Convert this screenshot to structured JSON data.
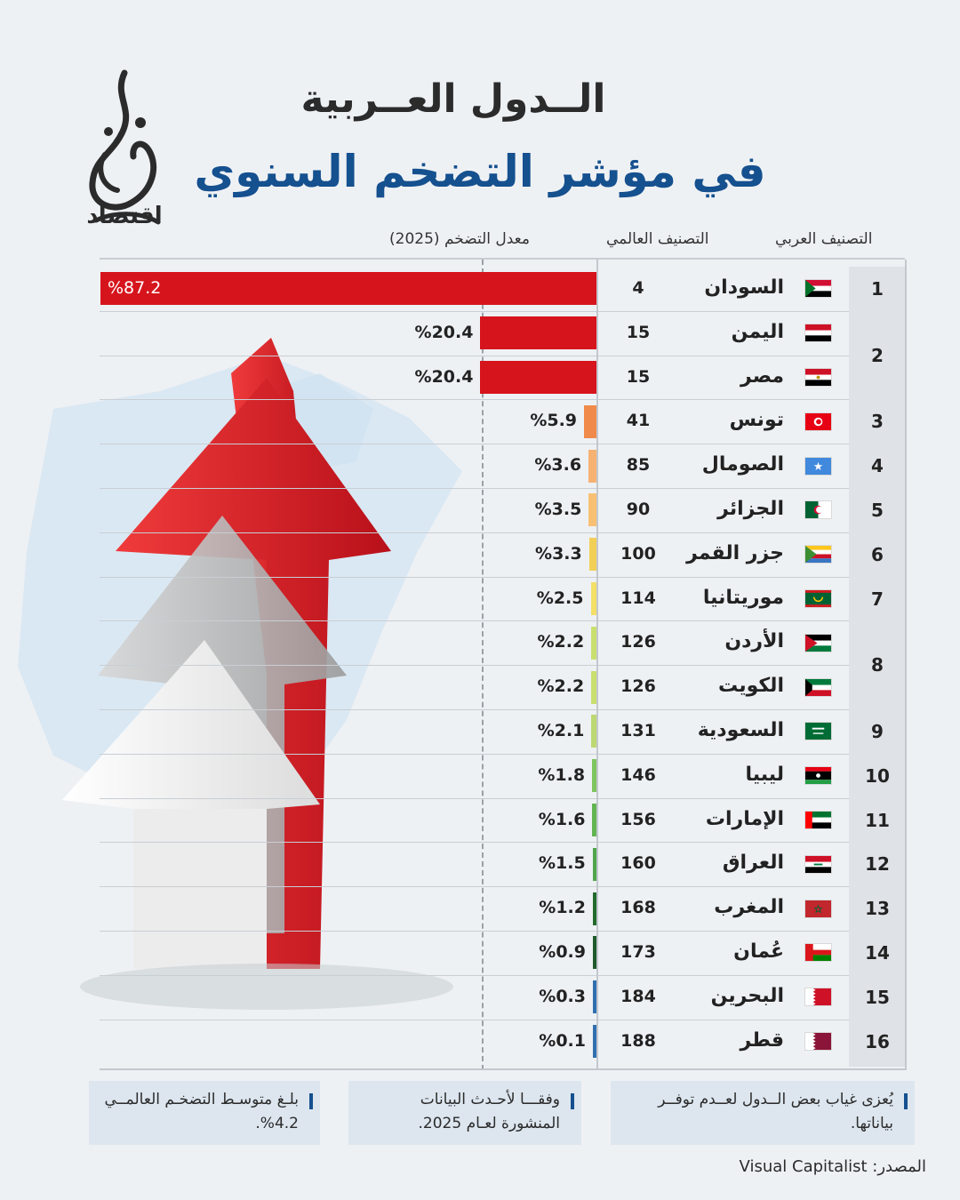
{
  "header": {
    "title_line1": "الــدول العــربية",
    "title_line2": "في مؤشر التضخم السنوي"
  },
  "logo": {
    "name": "الجزيرة",
    "sub_label": "اقتصاد"
  },
  "columns": {
    "arab_rank": "التصنيف العربي",
    "world_rank": "التصنيف العالمي",
    "rate": "معدل التضخم (2025)"
  },
  "chart_data": {
    "type": "bar",
    "orientation": "horizontal",
    "xlim": [
      0,
      87.2
    ],
    "grid": false,
    "rows": [
      {
        "arab_rank": "1",
        "country": "السودان",
        "world_rank": "4",
        "value": 87.2,
        "label": "%87.2",
        "color": "#d6141c"
      },
      {
        "arab_rank": "2",
        "country": "اليمن",
        "world_rank": "15",
        "value": 20.4,
        "label": "%20.4",
        "color": "#d6141c"
      },
      {
        "arab_rank": "",
        "country": "مصر",
        "world_rank": "15",
        "value": 20.4,
        "label": "%20.4",
        "color": "#d6141c"
      },
      {
        "arab_rank": "3",
        "country": "تونس",
        "world_rank": "41",
        "value": 5.9,
        "label": "%5.9",
        "color": "#f08a4b"
      },
      {
        "arab_rank": "4",
        "country": "الصومال",
        "world_rank": "85",
        "value": 3.6,
        "label": "%3.6",
        "color": "#f7b273"
      },
      {
        "arab_rank": "5",
        "country": "الجزائر",
        "world_rank": "90",
        "value": 3.5,
        "label": "%3.5",
        "color": "#f9c074"
      },
      {
        "arab_rank": "6",
        "country": "جزر القمر",
        "world_rank": "100",
        "value": 3.3,
        "label": "%3.3",
        "color": "#f2cf57"
      },
      {
        "arab_rank": "7",
        "country": "موريتانيا",
        "world_rank": "114",
        "value": 2.5,
        "label": "%2.5",
        "color": "#f4df67"
      },
      {
        "arab_rank": "8",
        "country": "الأردن",
        "world_rank": "126",
        "value": 2.2,
        "label": "%2.2",
        "color": "#c9df6f"
      },
      {
        "arab_rank": "",
        "country": "الكويت",
        "world_rank": "126",
        "value": 2.2,
        "label": "%2.2",
        "color": "#c9df6f"
      },
      {
        "arab_rank": "9",
        "country": "السعودية",
        "world_rank": "131",
        "value": 2.1,
        "label": "%2.1",
        "color": "#bcd872"
      },
      {
        "arab_rank": "10",
        "country": "ليبيا",
        "world_rank": "146",
        "value": 1.8,
        "label": "%1.8",
        "color": "#7fc55f"
      },
      {
        "arab_rank": "11",
        "country": "الإمارات",
        "world_rank": "156",
        "value": 1.6,
        "label": "%1.6",
        "color": "#62b552"
      },
      {
        "arab_rank": "12",
        "country": "العراق",
        "world_rank": "160",
        "value": 1.5,
        "label": "%1.5",
        "color": "#4fa64a"
      },
      {
        "arab_rank": "13",
        "country": "المغرب",
        "world_rank": "168",
        "value": 1.2,
        "label": "%1.2",
        "color": "#22692c"
      },
      {
        "arab_rank": "14",
        "country": "عُمان",
        "world_rank": "173",
        "value": 0.9,
        "label": "%0.9",
        "color": "#1e5a2a"
      },
      {
        "arab_rank": "15",
        "country": "البحرين",
        "world_rank": "184",
        "value": 0.3,
        "label": "%0.3",
        "color": "#2f6fb0"
      },
      {
        "arab_rank": "16",
        "country": "قطر",
        "world_rank": "188",
        "value": 0.1,
        "label": "%0.1",
        "color": "#2f6fb0"
      }
    ]
  },
  "notes": [
    "بلـغ متوسـط التضخـم العالمــي 4.2%.",
    "وفقـــا لأحـدث البيانات المنشورة لعـام 2025.",
    "يُعزى غياب بعض الــدول لعــدم توفــر بياناتها."
  ],
  "source": "المصدر: Visual Capitalist"
}
